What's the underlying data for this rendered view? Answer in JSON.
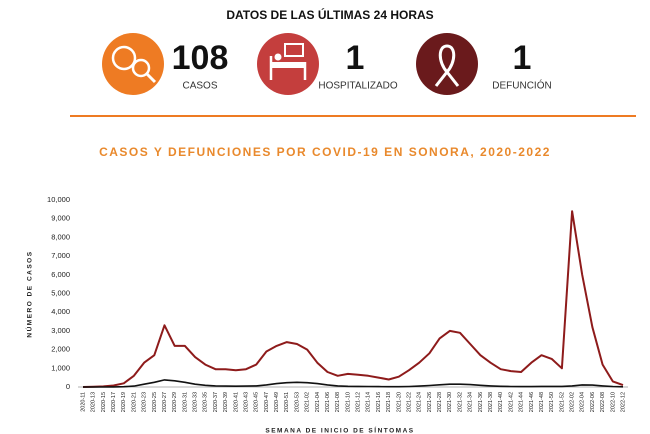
{
  "header": {
    "title": "DATOS DE LAS ÚLTIMAS 24 HORAS",
    "stats": [
      {
        "value": 108,
        "label": "CASOS"
      },
      {
        "value": 1,
        "label": "HOSPITALIZADO"
      },
      {
        "value": 1,
        "label": "DEFUNCIÓN"
      }
    ]
  },
  "chart_data": {
    "type": "line",
    "title": "CASOS Y DEFUNCIONES POR COVID-19 EN SONORA, 2020-2022",
    "y_label": "NÚMERO DE CASOS",
    "x_label": "SEMANA DE INICIO DE SÍNTOMAS",
    "categories": [
      "2020-11",
      "2020-13",
      "2020-15",
      "2020-17",
      "2020-19",
      "2020-21",
      "2020-23",
      "2020-25",
      "2020-27",
      "2020-29",
      "2020-31",
      "2020-33",
      "2020-35",
      "2020-37",
      "2020-39",
      "2020-41",
      "2020-43",
      "2020-45",
      "2020-47",
      "2020-49",
      "2020-51",
      "2020-53",
      "2021-02",
      "2021-04",
      "2021-06",
      "2021-08",
      "2021-10",
      "2021-12",
      "2021-14",
      "2021-16",
      "2021-18",
      "2021-20",
      "2021-22",
      "2021-24",
      "2021-26",
      "2021-28",
      "2021-30",
      "2021-32",
      "2021-34",
      "2021-36",
      "2021-38",
      "2021-40",
      "2021-42",
      "2021-44",
      "2021-46",
      "2021-48",
      "2021-50",
      "2021-52",
      "2022-02",
      "2022-04",
      "2022-06",
      "2022-08",
      "2022-10",
      "2022-12"
    ],
    "series": [
      {
        "color": "#8e1b1b",
        "values": [
          0,
          10,
          30,
          80,
          200,
          600,
          1300,
          1700,
          3300,
          2200,
          2200,
          1600,
          1200,
          950,
          950,
          900,
          950,
          1200,
          1900,
          2200,
          2400,
          2300,
          2000,
          1300,
          800,
          600,
          700,
          650,
          600,
          500,
          400,
          550,
          900,
          1300,
          1800,
          2600,
          3000,
          2900,
          2300,
          1700,
          1300,
          950,
          850,
          800,
          1300,
          1700,
          1500,
          1000,
          9400,
          6000,
          3200,
          1200,
          300,
          100
        ]
      },
      {
        "color": "#111111",
        "values": [
          0,
          0,
          2,
          5,
          15,
          50,
          150,
          250,
          380,
          330,
          250,
          150,
          90,
          60,
          50,
          45,
          50,
          60,
          110,
          180,
          230,
          250,
          230,
          180,
          110,
          60,
          40,
          30,
          25,
          20,
          15,
          15,
          25,
          50,
          80,
          120,
          150,
          150,
          130,
          90,
          60,
          35,
          25,
          20,
          20,
          30,
          30,
          30,
          60,
          110,
          100,
          60,
          25,
          10
        ]
      }
    ],
    "ylim": [
      0,
      10000
    ],
    "yticks": [
      0,
      {
        "value": 1000,
        "label": "1,000"
      },
      {
        "value": 2000,
        "label": "2,000"
      },
      {
        "value": 3000,
        "label": "3,000"
      },
      {
        "value": 4000,
        "label": "4,000"
      },
      {
        "value": 5000,
        "label": "5,000"
      },
      {
        "value": 6000,
        "label": "6,000"
      },
      {
        "value": 7000,
        "label": "7,000"
      },
      {
        "value": 8000,
        "label": "8,000"
      },
      {
        "value": 9000,
        "label": "9,000"
      },
      {
        "value": 10000,
        "label": "10,000"
      }
    ],
    "grid": false
  }
}
